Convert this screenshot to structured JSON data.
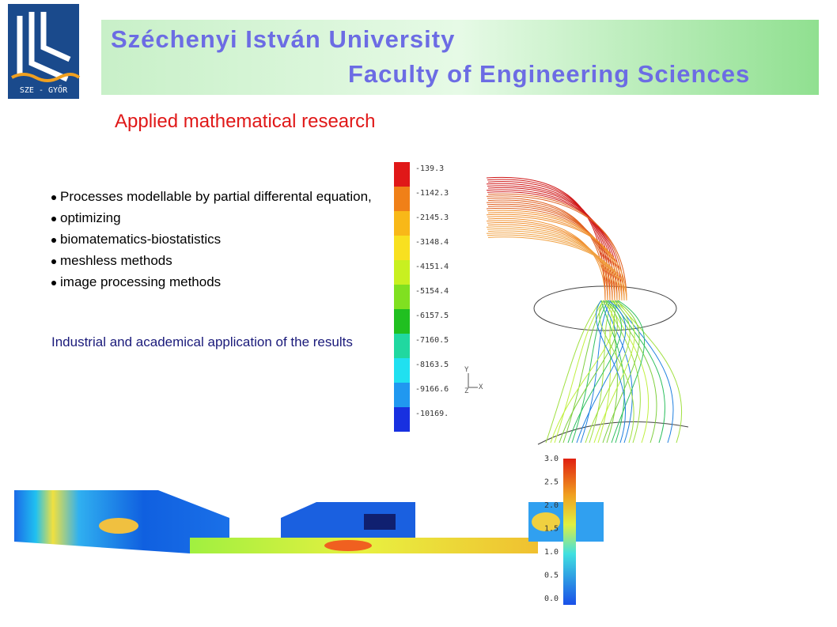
{
  "header": {
    "logo_text": "SZE - GYŐR",
    "title": "Széchenyi István University",
    "subtitle": "Faculty of Engineering Sciences"
  },
  "heading": "Applied mathematical research",
  "bullets": [
    "Processes modellable by partial differental equation,",
    "optimizing",
    "biomatematics-biostatistics",
    "meshless methods",
    "image processing methods"
  ],
  "paragraph": "Industrial and academical application of the results",
  "figure_1": {
    "colorbar_labels": [
      "-139.3",
      "-1142.3",
      "-2145.3",
      "-3148.4",
      "-4151.4",
      "-5154.4",
      "-6157.5",
      "-7160.5",
      "-8163.5",
      "-9166.6",
      "-10169."
    ],
    "axis_labels": [
      "Y",
      "Z",
      "X"
    ]
  },
  "figure_2": {
    "colorbar_labels": [
      "3.0",
      "2.5",
      "2.0",
      "1.5",
      "1.0",
      "0.5",
      "0.0"
    ]
  }
}
